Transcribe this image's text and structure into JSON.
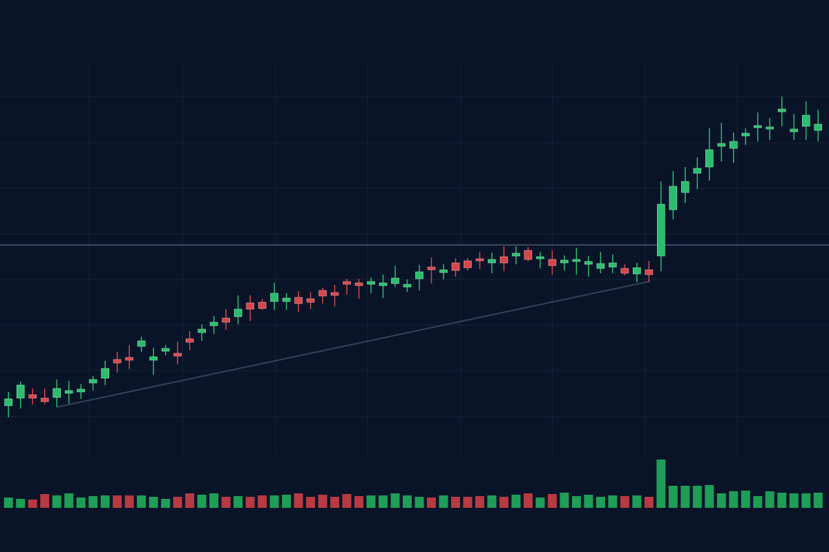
{
  "chart_data": {
    "type": "candlestick",
    "up_color": "#2bbd6e",
    "down_color": "#d6464c",
    "grid": true,
    "grid_color": "#16243a",
    "ylim": [
      0,
      660
    ],
    "yticks": [
      56,
      123,
      189,
      255,
      321,
      387,
      453,
      520
    ],
    "xlim": [
      -0.7,
      67.9
    ],
    "xticks": [
      6.7,
      14.4,
      22.1,
      29.7,
      37.4,
      45.0,
      52.7,
      60.3
    ],
    "vlim": [
      0,
      80
    ],
    "hline": 305,
    "hline_color": "#3c4b62",
    "trendline": {
      "x": [
        4,
        53
      ],
      "y": [
        70,
        252
      ],
      "color": "#33435a"
    },
    "open": [
      72,
      83,
      88,
      83,
      84,
      90,
      92,
      105,
      112,
      139,
      142,
      158,
      138,
      151,
      148,
      169,
      178,
      188,
      199,
      201,
      221,
      222,
      223,
      223,
      229,
      227,
      239,
      236,
      252,
      250,
      248,
      246,
      249,
      244,
      256,
      273,
      265,
      279,
      282,
      285,
      279,
      288,
      289,
      297,
      285,
      284,
      279,
      281,
      277,
      271,
      273,
      271,
      263,
      269,
      289,
      356,
      381,
      409,
      418,
      448,
      445,
      463,
      475,
      473,
      498,
      469,
      477,
      471
    ],
    "high": [
      92,
      107,
      97,
      97,
      110,
      108,
      103,
      115,
      137,
      150,
      160,
      172,
      156,
      160,
      165,
      180,
      190,
      202,
      212,
      232,
      232,
      227,
      250,
      235,
      238,
      237,
      243,
      247,
      256,
      256,
      258,
      262,
      275,
      255,
      276,
      287,
      277,
      286,
      286,
      295,
      294,
      303,
      303,
      302,
      295,
      297,
      290,
      301,
      289,
      295,
      291,
      277,
      279,
      282,
      397,
      412,
      418,
      432,
      474,
      482,
      468,
      474,
      497,
      489,
      520,
      495,
      513,
      501
    ],
    "low": [
      55,
      68,
      74,
      74,
      70,
      75,
      82,
      94,
      102,
      120,
      125,
      150,
      117,
      145,
      132,
      152,
      166,
      176,
      182,
      190,
      195,
      211,
      211,
      211,
      208,
      212,
      220,
      216,
      233,
      227,
      235,
      228,
      244,
      237,
      239,
      249,
      255,
      259,
      268,
      270,
      264,
      267,
      277,
      281,
      271,
      262,
      268,
      262,
      259,
      264,
      264,
      261,
      251,
      251,
      267,
      342,
      366,
      386,
      398,
      426,
      424,
      450,
      455,
      457,
      477,
      457,
      457,
      455
    ],
    "close": [
      82,
      102,
      83,
      78,
      97,
      94,
      96,
      110,
      126,
      134,
      138,
      166,
      143,
      155,
      144,
      164,
      183,
      193,
      193,
      212,
      212,
      213,
      235,
      228,
      220,
      222,
      231,
      232,
      248,
      246,
      252,
      250,
      257,
      248,
      266,
      269,
      269,
      268,
      272,
      282,
      284,
      279,
      293,
      284,
      288,
      275,
      283,
      284,
      281,
      278,
      279,
      264,
      272,
      262,
      364,
      390,
      397,
      416,
      443,
      452,
      455,
      467,
      478,
      476,
      502,
      473,
      493,
      480
    ],
    "volume": [
      15,
      13,
      12,
      20,
      18,
      21,
      15,
      17,
      18,
      18,
      18,
      18,
      16,
      13,
      16,
      21,
      19,
      21,
      16,
      17,
      16,
      18,
      18,
      19,
      21,
      16,
      19,
      16,
      20,
      17,
      18,
      18,
      21,
      18,
      16,
      15,
      18,
      16,
      16,
      17,
      18,
      16,
      19,
      21,
      15,
      20,
      22,
      17,
      19,
      16,
      18,
      17,
      18,
      16,
      70,
      32,
      32,
      32,
      33,
      21,
      24,
      25,
      17,
      24,
      22,
      21,
      21,
      22
    ]
  }
}
